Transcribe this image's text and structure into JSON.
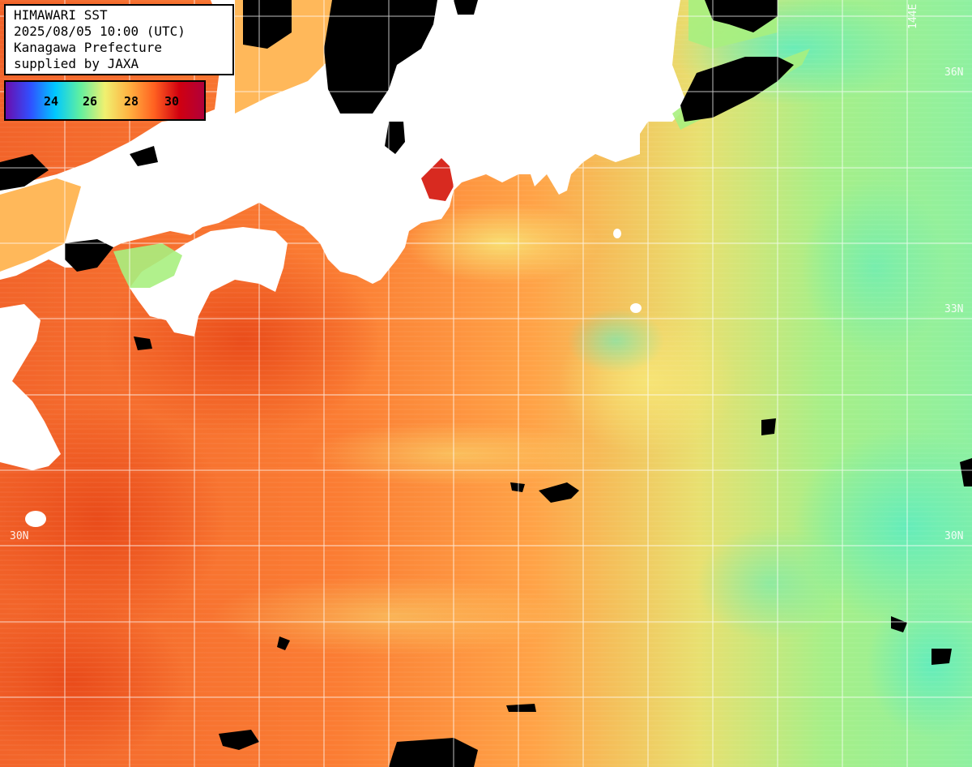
{
  "header": {
    "line1": "HIMAWARI SST",
    "line2": "2025/08/05 10:00 (UTC)",
    "line3": "Kanagawa Prefecture",
    "line4": "supplied by JAXA"
  },
  "legend": {
    "ticks": [
      "24",
      "26",
      "28",
      "30"
    ],
    "colors": [
      "#6a0dad",
      "#3050ff",
      "#00c8ff",
      "#60f0a0",
      "#f0f070",
      "#ffb040",
      "#ff6020",
      "#d00010",
      "#b0003a"
    ]
  },
  "graticule": {
    "lat_labels": [
      "36N",
      "33N",
      "30N",
      "30N"
    ],
    "lon_labels": [
      "144E"
    ]
  },
  "colors": {
    "land": "#ffffff",
    "cloud_mask": "#000000",
    "sea_warm": "#ff8a3a",
    "sea_hot": "#f05a20",
    "sea_mild": "#ffc060",
    "sea_cool": "#a8f080",
    "sea_cooler": "#60f0b0",
    "gridline": "#ffffff"
  }
}
